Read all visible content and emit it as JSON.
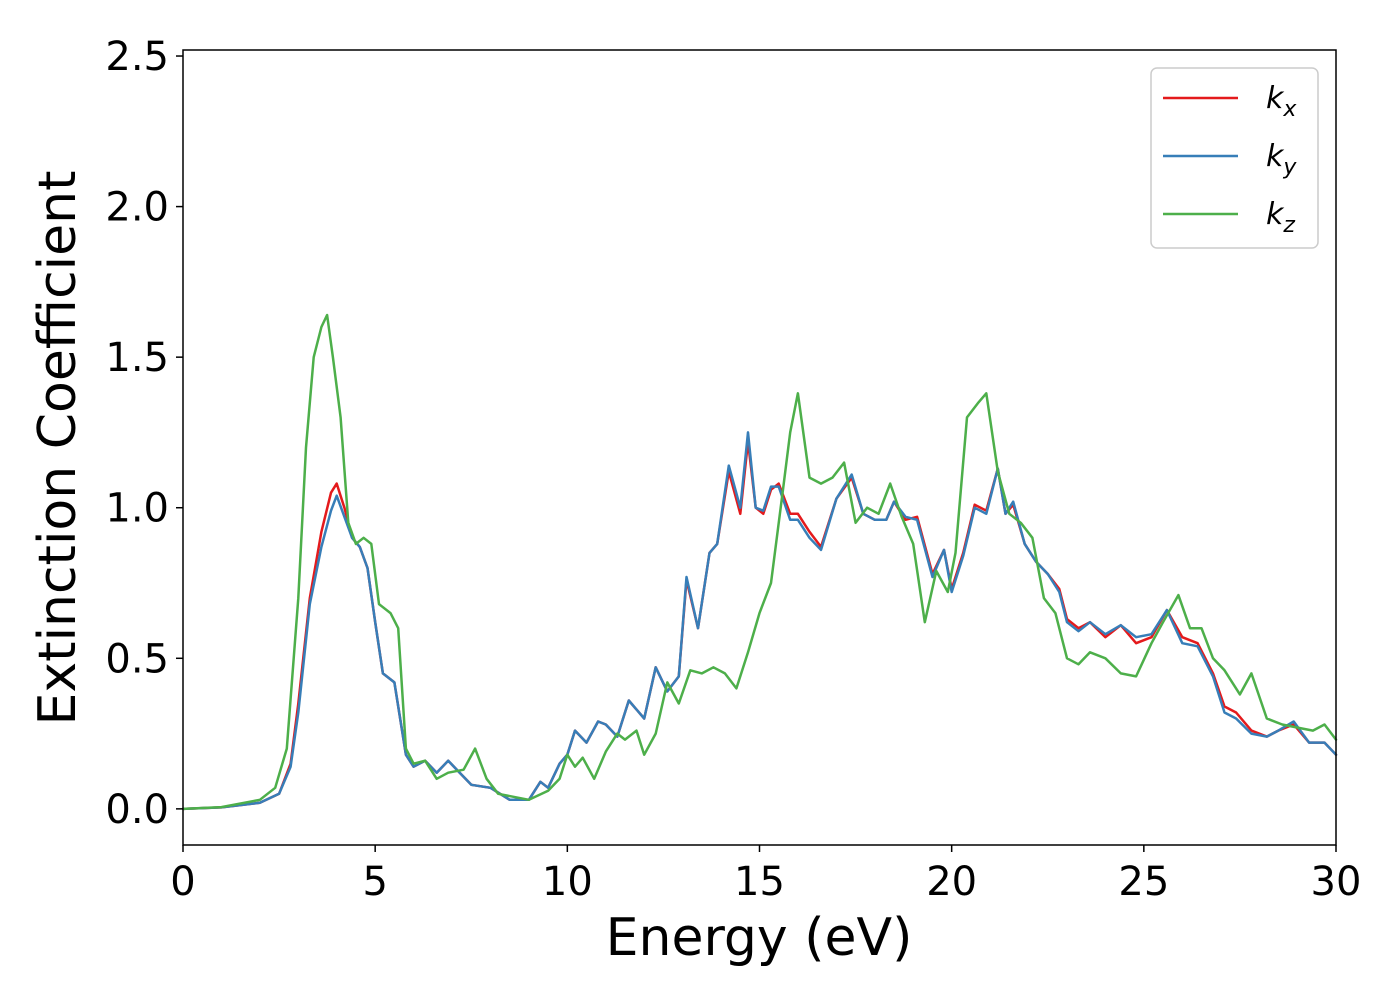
{
  "chart_data": {
    "type": "line",
    "title": "",
    "xlabel": "Energy (eV)",
    "ylabel": "Extinction Coefficient",
    "xlim": [
      0,
      30
    ],
    "ylim": [
      -0.12,
      2.52
    ],
    "x_ticks": [
      "0",
      "5",
      "10",
      "15",
      "20",
      "25",
      "30"
    ],
    "y_ticks": [
      "0.0",
      "0.5",
      "1.0",
      "1.5",
      "2.0",
      "2.5"
    ],
    "grid": false,
    "legend_position": "top-right",
    "series": [
      {
        "name": "k",
        "subscript": "x",
        "color": "#e41a1c",
        "points": [
          [
            0,
            0
          ],
          [
            1,
            0.005
          ],
          [
            2,
            0.02
          ],
          [
            2.5,
            0.05
          ],
          [
            2.8,
            0.15
          ],
          [
            3.0,
            0.35
          ],
          [
            3.3,
            0.7
          ],
          [
            3.6,
            0.92
          ],
          [
            3.85,
            1.05
          ],
          [
            4.0,
            1.08
          ],
          [
            4.2,
            1.0
          ],
          [
            4.4,
            0.9
          ],
          [
            4.6,
            0.87
          ],
          [
            4.8,
            0.8
          ],
          [
            5.0,
            0.62
          ],
          [
            5.2,
            0.45
          ],
          [
            5.5,
            0.42
          ],
          [
            5.8,
            0.18
          ],
          [
            6.0,
            0.14
          ],
          [
            6.3,
            0.16
          ],
          [
            6.6,
            0.12
          ],
          [
            6.9,
            0.16
          ],
          [
            7.2,
            0.12
          ],
          [
            7.5,
            0.08
          ],
          [
            8.0,
            0.07
          ],
          [
            8.5,
            0.03
          ],
          [
            9.0,
            0.03
          ],
          [
            9.3,
            0.09
          ],
          [
            9.5,
            0.07
          ],
          [
            9.8,
            0.15
          ],
          [
            10.0,
            0.18
          ],
          [
            10.2,
            0.26
          ],
          [
            10.5,
            0.22
          ],
          [
            10.8,
            0.29
          ],
          [
            11.0,
            0.28
          ],
          [
            11.3,
            0.24
          ],
          [
            11.6,
            0.36
          ],
          [
            12.0,
            0.3
          ],
          [
            12.3,
            0.47
          ],
          [
            12.6,
            0.39
          ],
          [
            12.9,
            0.44
          ],
          [
            13.1,
            0.76
          ],
          [
            13.4,
            0.6
          ],
          [
            13.7,
            0.85
          ],
          [
            13.9,
            0.88
          ],
          [
            14.2,
            1.12
          ],
          [
            14.5,
            0.98
          ],
          [
            14.7,
            1.22
          ],
          [
            14.9,
            1.0
          ],
          [
            15.1,
            0.98
          ],
          [
            15.3,
            1.06
          ],
          [
            15.5,
            1.08
          ],
          [
            15.8,
            0.98
          ],
          [
            16.0,
            0.98
          ],
          [
            16.3,
            0.92
          ],
          [
            16.6,
            0.87
          ],
          [
            17.0,
            1.03
          ],
          [
            17.4,
            1.1
          ],
          [
            17.7,
            0.98
          ],
          [
            18.0,
            0.96
          ],
          [
            18.3,
            0.96
          ],
          [
            18.5,
            1.02
          ],
          [
            18.8,
            0.96
          ],
          [
            19.1,
            0.97
          ],
          [
            19.5,
            0.78
          ],
          [
            19.8,
            0.86
          ],
          [
            20.0,
            0.73
          ],
          [
            20.3,
            0.85
          ],
          [
            20.6,
            1.01
          ],
          [
            20.9,
            0.99
          ],
          [
            21.2,
            1.13
          ],
          [
            21.4,
            0.98
          ],
          [
            21.6,
            1.01
          ],
          [
            21.9,
            0.88
          ],
          [
            22.2,
            0.82
          ],
          [
            22.5,
            0.78
          ],
          [
            22.8,
            0.73
          ],
          [
            23.0,
            0.63
          ],
          [
            23.3,
            0.6
          ],
          [
            23.6,
            0.62
          ],
          [
            24.0,
            0.57
          ],
          [
            24.4,
            0.61
          ],
          [
            24.8,
            0.55
          ],
          [
            25.2,
            0.57
          ],
          [
            25.6,
            0.66
          ],
          [
            26.0,
            0.57
          ],
          [
            26.4,
            0.55
          ],
          [
            26.8,
            0.45
          ],
          [
            27.1,
            0.34
          ],
          [
            27.4,
            0.32
          ],
          [
            27.8,
            0.26
          ],
          [
            28.2,
            0.24
          ],
          [
            28.5,
            0.26
          ],
          [
            28.9,
            0.28
          ],
          [
            29.3,
            0.22
          ],
          [
            29.7,
            0.22
          ],
          [
            30,
            0.18
          ]
        ]
      },
      {
        "name": "k",
        "subscript": "y",
        "color": "#377eb8",
        "points": [
          [
            0,
            0
          ],
          [
            1,
            0.005
          ],
          [
            2,
            0.02
          ],
          [
            2.5,
            0.05
          ],
          [
            2.8,
            0.14
          ],
          [
            3.0,
            0.32
          ],
          [
            3.3,
            0.68
          ],
          [
            3.6,
            0.87
          ],
          [
            3.85,
            0.99
          ],
          [
            4.0,
            1.04
          ],
          [
            4.2,
            0.97
          ],
          [
            4.4,
            0.9
          ],
          [
            4.6,
            0.87
          ],
          [
            4.8,
            0.8
          ],
          [
            5.0,
            0.62
          ],
          [
            5.2,
            0.45
          ],
          [
            5.5,
            0.42
          ],
          [
            5.8,
            0.18
          ],
          [
            6.0,
            0.14
          ],
          [
            6.3,
            0.16
          ],
          [
            6.6,
            0.12
          ],
          [
            6.9,
            0.16
          ],
          [
            7.2,
            0.12
          ],
          [
            7.5,
            0.08
          ],
          [
            8.0,
            0.07
          ],
          [
            8.5,
            0.03
          ],
          [
            9.0,
            0.03
          ],
          [
            9.3,
            0.09
          ],
          [
            9.5,
            0.07
          ],
          [
            9.8,
            0.15
          ],
          [
            10.0,
            0.18
          ],
          [
            10.2,
            0.26
          ],
          [
            10.5,
            0.22
          ],
          [
            10.8,
            0.29
          ],
          [
            11.0,
            0.28
          ],
          [
            11.3,
            0.24
          ],
          [
            11.6,
            0.36
          ],
          [
            12.0,
            0.3
          ],
          [
            12.3,
            0.47
          ],
          [
            12.6,
            0.39
          ],
          [
            12.9,
            0.44
          ],
          [
            13.1,
            0.77
          ],
          [
            13.4,
            0.6
          ],
          [
            13.7,
            0.85
          ],
          [
            13.9,
            0.88
          ],
          [
            14.2,
            1.14
          ],
          [
            14.5,
            1.0
          ],
          [
            14.7,
            1.25
          ],
          [
            14.9,
            1.0
          ],
          [
            15.1,
            0.99
          ],
          [
            15.3,
            1.07
          ],
          [
            15.5,
            1.07
          ],
          [
            15.8,
            0.96
          ],
          [
            16.0,
            0.96
          ],
          [
            16.3,
            0.9
          ],
          [
            16.6,
            0.86
          ],
          [
            17.0,
            1.03
          ],
          [
            17.4,
            1.11
          ],
          [
            17.7,
            0.98
          ],
          [
            18.0,
            0.96
          ],
          [
            18.3,
            0.96
          ],
          [
            18.5,
            1.02
          ],
          [
            18.8,
            0.97
          ],
          [
            19.1,
            0.96
          ],
          [
            19.5,
            0.77
          ],
          [
            19.8,
            0.86
          ],
          [
            20.0,
            0.72
          ],
          [
            20.3,
            0.84
          ],
          [
            20.6,
            1.0
          ],
          [
            20.9,
            0.98
          ],
          [
            21.2,
            1.13
          ],
          [
            21.4,
            0.98
          ],
          [
            21.6,
            1.02
          ],
          [
            21.9,
            0.88
          ],
          [
            22.2,
            0.82
          ],
          [
            22.5,
            0.78
          ],
          [
            22.8,
            0.72
          ],
          [
            23.0,
            0.62
          ],
          [
            23.3,
            0.59
          ],
          [
            23.6,
            0.62
          ],
          [
            24.0,
            0.58
          ],
          [
            24.4,
            0.61
          ],
          [
            24.8,
            0.57
          ],
          [
            25.2,
            0.58
          ],
          [
            25.6,
            0.66
          ],
          [
            26.0,
            0.55
          ],
          [
            26.4,
            0.54
          ],
          [
            26.8,
            0.44
          ],
          [
            27.1,
            0.32
          ],
          [
            27.4,
            0.3
          ],
          [
            27.8,
            0.25
          ],
          [
            28.2,
            0.24
          ],
          [
            28.5,
            0.26
          ],
          [
            28.9,
            0.29
          ],
          [
            29.3,
            0.22
          ],
          [
            29.7,
            0.22
          ],
          [
            30,
            0.18
          ]
        ]
      },
      {
        "name": "k",
        "subscript": "z",
        "color": "#4daf4a",
        "points": [
          [
            0,
            0
          ],
          [
            1,
            0.006
          ],
          [
            2,
            0.03
          ],
          [
            2.4,
            0.07
          ],
          [
            2.7,
            0.2
          ],
          [
            3.0,
            0.7
          ],
          [
            3.2,
            1.2
          ],
          [
            3.4,
            1.5
          ],
          [
            3.6,
            1.6
          ],
          [
            3.75,
            1.64
          ],
          [
            3.9,
            1.5
          ],
          [
            4.1,
            1.3
          ],
          [
            4.3,
            0.95
          ],
          [
            4.5,
            0.88
          ],
          [
            4.7,
            0.9
          ],
          [
            4.9,
            0.88
          ],
          [
            5.1,
            0.68
          ],
          [
            5.4,
            0.65
          ],
          [
            5.6,
            0.6
          ],
          [
            5.8,
            0.2
          ],
          [
            6.0,
            0.15
          ],
          [
            6.3,
            0.16
          ],
          [
            6.6,
            0.1
          ],
          [
            6.9,
            0.12
          ],
          [
            7.3,
            0.13
          ],
          [
            7.6,
            0.2
          ],
          [
            7.9,
            0.1
          ],
          [
            8.2,
            0.05
          ],
          [
            8.6,
            0.04
          ],
          [
            9.0,
            0.03
          ],
          [
            9.5,
            0.06
          ],
          [
            9.8,
            0.1
          ],
          [
            10.0,
            0.18
          ],
          [
            10.2,
            0.14
          ],
          [
            10.4,
            0.17
          ],
          [
            10.7,
            0.1
          ],
          [
            11.0,
            0.19
          ],
          [
            11.3,
            0.25
          ],
          [
            11.5,
            0.23
          ],
          [
            11.8,
            0.26
          ],
          [
            12.0,
            0.18
          ],
          [
            12.3,
            0.25
          ],
          [
            12.6,
            0.42
          ],
          [
            12.9,
            0.35
          ],
          [
            13.2,
            0.46
          ],
          [
            13.5,
            0.45
          ],
          [
            13.8,
            0.47
          ],
          [
            14.1,
            0.45
          ],
          [
            14.4,
            0.4
          ],
          [
            14.7,
            0.52
          ],
          [
            15.0,
            0.65
          ],
          [
            15.3,
            0.75
          ],
          [
            15.6,
            1.05
          ],
          [
            15.8,
            1.25
          ],
          [
            16.0,
            1.38
          ],
          [
            16.3,
            1.1
          ],
          [
            16.6,
            1.08
          ],
          [
            16.9,
            1.1
          ],
          [
            17.2,
            1.15
          ],
          [
            17.5,
            0.95
          ],
          [
            17.8,
            1.0
          ],
          [
            18.1,
            0.98
          ],
          [
            18.4,
            1.08
          ],
          [
            18.7,
            0.97
          ],
          [
            19.0,
            0.88
          ],
          [
            19.3,
            0.62
          ],
          [
            19.6,
            0.79
          ],
          [
            19.9,
            0.72
          ],
          [
            20.1,
            0.85
          ],
          [
            20.4,
            1.3
          ],
          [
            20.7,
            1.35
          ],
          [
            20.9,
            1.38
          ],
          [
            21.2,
            1.12
          ],
          [
            21.5,
            0.98
          ],
          [
            21.8,
            0.95
          ],
          [
            22.1,
            0.9
          ],
          [
            22.4,
            0.7
          ],
          [
            22.7,
            0.65
          ],
          [
            23.0,
            0.5
          ],
          [
            23.3,
            0.48
          ],
          [
            23.6,
            0.52
          ],
          [
            24.0,
            0.5
          ],
          [
            24.4,
            0.45
          ],
          [
            24.8,
            0.44
          ],
          [
            25.2,
            0.55
          ],
          [
            25.5,
            0.62
          ],
          [
            25.9,
            0.71
          ],
          [
            26.2,
            0.6
          ],
          [
            26.5,
            0.6
          ],
          [
            26.8,
            0.5
          ],
          [
            27.1,
            0.46
          ],
          [
            27.5,
            0.38
          ],
          [
            27.8,
            0.45
          ],
          [
            28.2,
            0.3
          ],
          [
            28.6,
            0.28
          ],
          [
            29.0,
            0.27
          ],
          [
            29.4,
            0.26
          ],
          [
            29.7,
            0.28
          ],
          [
            30,
            0.23
          ]
        ]
      }
    ]
  }
}
